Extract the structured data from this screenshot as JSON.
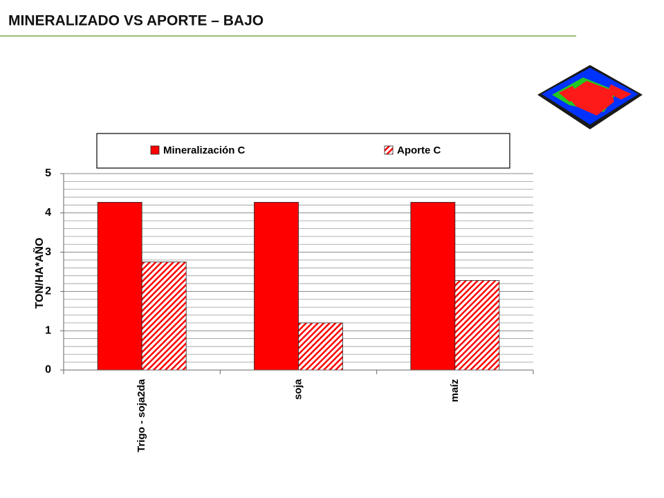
{
  "chart_data": {
    "type": "bar",
    "title": "MINERALIZADO VS APORTE – BAJO",
    "y_label": "TON/HA*AÑO",
    "categories": [
      "Trigo - soja2da",
      "soja",
      "maíz"
    ],
    "series": [
      {
        "name": "Mineralización C",
        "color": "#ff0000",
        "hatch": false,
        "values": [
          4.27,
          4.27,
          4.27
        ]
      },
      {
        "name": "Aporte C",
        "color": "#ff0000",
        "hatch": true,
        "values": [
          2.75,
          1.2,
          2.28
        ]
      }
    ],
    "ylim": [
      0,
      5
    ],
    "yticks": [
      0,
      1,
      2,
      3,
      4,
      5
    ],
    "grid": true,
    "legend": "top"
  }
}
